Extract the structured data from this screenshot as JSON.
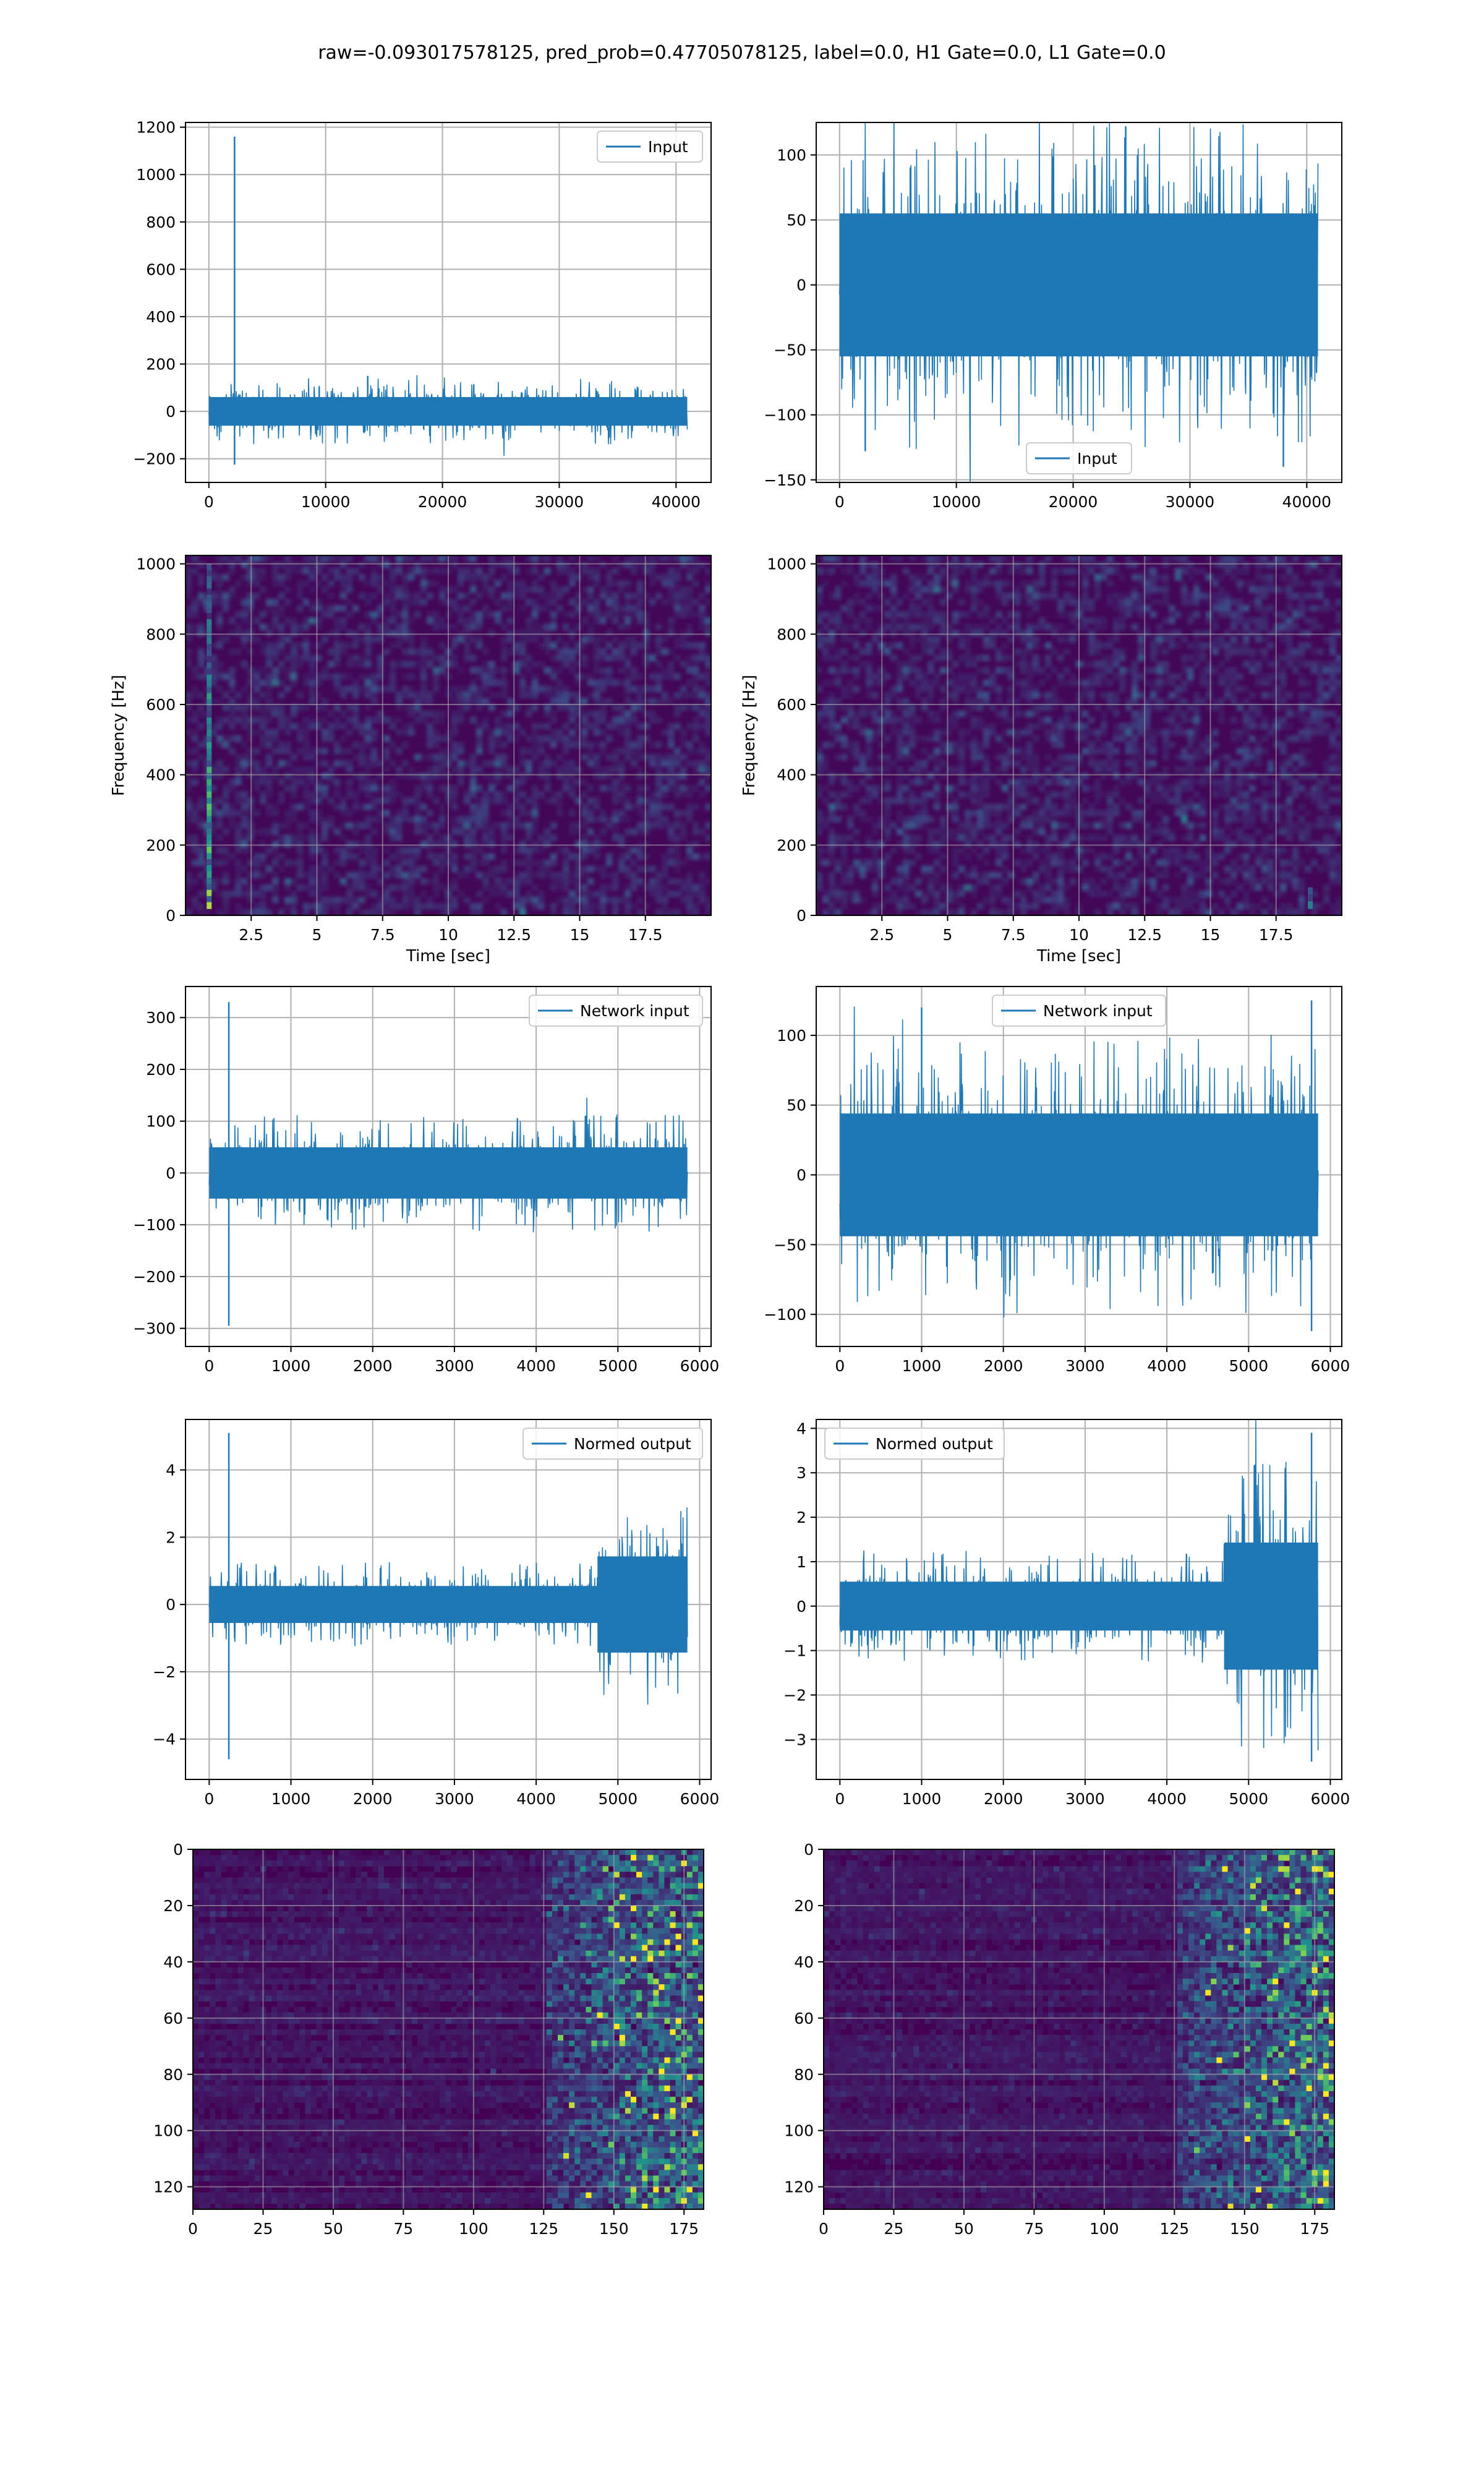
{
  "figure": {
    "suptitle": "raw=-0.093017578125, pred_prob=0.47705078125, label=0.0, H1 Gate=0.0, L1 Gate=0.0",
    "line_color": "#1f77b4"
  },
  "chart_data": [
    {
      "id": "input-h1",
      "type": "line",
      "title": "",
      "xlabel": "",
      "ylabel": "",
      "xlim": [
        -2000,
        43000
      ],
      "ylim": [
        -300,
        1220
      ],
      "xticks": [
        0,
        10000,
        20000,
        30000,
        40000
      ],
      "yticks": [
        -200,
        0,
        200,
        400,
        600,
        800,
        1000,
        1200
      ],
      "grid": true,
      "legend": {
        "placement": "top-right",
        "entries": [
          "Input"
        ]
      },
      "series": [
        {
          "name": "Input",
          "n_samples": 40960,
          "envelope": [
            -110,
            110
          ],
          "spikes": [
            [
              2200,
              1160
            ],
            [
              2200,
              -225
            ],
            [
              13600,
              150
            ]
          ]
        }
      ]
    },
    {
      "id": "input-l1",
      "type": "line",
      "title": "",
      "xlabel": "",
      "ylabel": "",
      "xlim": [
        -2000,
        43000
      ],
      "ylim": [
        -152,
        125
      ],
      "xticks": [
        0,
        10000,
        20000,
        30000,
        40000
      ],
      "yticks": [
        -150,
        -100,
        -50,
        0,
        50,
        100
      ],
      "grid": true,
      "legend": {
        "placement": "bottom-center",
        "entries": [
          "Input"
        ]
      },
      "series": [
        {
          "name": "Input",
          "n_samples": 40960,
          "envelope": [
            -100,
            100
          ],
          "spikes": [
            [
              24500,
              122
            ],
            [
              38000,
              -140
            ],
            [
              2200,
              -128
            ]
          ]
        }
      ]
    },
    {
      "id": "spectrogram-h1",
      "type": "heatmap",
      "title": "",
      "xlabel": "Time [sec]",
      "ylabel": "Frequency [Hz]",
      "xlim": [
        0,
        20
      ],
      "ylim": [
        0,
        1024
      ],
      "xticks": [
        2.5,
        5.0,
        7.5,
        10.0,
        12.5,
        15.0,
        17.5
      ],
      "yticks": [
        0,
        200,
        400,
        600,
        800,
        1000
      ],
      "grid": true,
      "hotspots": [
        {
          "t": 0.9,
          "f_range": [
            20,
            1000
          ],
          "intensity": 0.9
        }
      ]
    },
    {
      "id": "spectrogram-l1",
      "type": "heatmap",
      "title": "",
      "xlabel": "Time [sec]",
      "ylabel": "Frequency [Hz]",
      "xlim": [
        0,
        20
      ],
      "ylim": [
        0,
        1024
      ],
      "xticks": [
        2.5,
        5.0,
        7.5,
        10.0,
        12.5,
        15.0,
        17.5
      ],
      "yticks": [
        0,
        200,
        400,
        600,
        800,
        1000
      ],
      "grid": true,
      "hotspots": [
        {
          "t": 18.8,
          "f_range": [
            20,
            80
          ],
          "intensity": 0.8
        }
      ]
    },
    {
      "id": "network-input-h1",
      "type": "line",
      "title": "",
      "xlabel": "",
      "ylabel": "",
      "xlim": [
        -290,
        6140
      ],
      "ylim": [
        -335,
        360
      ],
      "xticks": [
        0,
        1000,
        2000,
        3000,
        4000,
        5000,
        6000
      ],
      "yticks": [
        -300,
        -200,
        -100,
        0,
        100,
        200,
        300
      ],
      "grid": true,
      "legend": {
        "placement": "top-right",
        "entries": [
          "Network input"
        ]
      },
      "series": [
        {
          "name": "Network input",
          "n_samples": 5850,
          "envelope": [
            -90,
            90
          ],
          "spikes": [
            [
              240,
              330
            ],
            [
              240,
              -295
            ]
          ]
        }
      ]
    },
    {
      "id": "network-input-l1",
      "type": "line",
      "title": "",
      "xlabel": "",
      "ylabel": "",
      "xlim": [
        -290,
        6140
      ],
      "ylim": [
        -123,
        135
      ],
      "xticks": [
        0,
        1000,
        2000,
        3000,
        4000,
        5000,
        6000
      ],
      "yticks": [
        -100,
        -50,
        0,
        50,
        100
      ],
      "grid": true,
      "legend": {
        "placement": "top-center",
        "entries": [
          "Network input"
        ]
      },
      "series": [
        {
          "name": "Network input",
          "n_samples": 5850,
          "envelope": [
            -80,
            80
          ],
          "spikes": [
            [
              1000,
              120
            ],
            [
              5770,
              125
            ],
            [
              5770,
              -112
            ]
          ]
        }
      ]
    },
    {
      "id": "normed-output-h1",
      "type": "line",
      "title": "",
      "xlabel": "",
      "ylabel": "",
      "xlim": [
        -290,
        6140
      ],
      "ylim": [
        -5.2,
        5.5
      ],
      "xticks": [
        0,
        1000,
        2000,
        3000,
        4000,
        5000,
        6000
      ],
      "yticks": [
        -4,
        -2,
        0,
        2,
        4
      ],
      "grid": true,
      "legend": {
        "placement": "top-right",
        "entries": [
          "Normed output"
        ]
      },
      "series": [
        {
          "name": "Normed output",
          "n_samples": 5850,
          "envelope": [
            -1.0,
            1.0
          ],
          "spikes": [
            [
              240,
              5.1
            ],
            [
              240,
              -4.6
            ]
          ],
          "burst_start": 4750,
          "burst_envelope": [
            -2.6,
            2.6
          ]
        }
      ]
    },
    {
      "id": "normed-output-l1",
      "type": "line",
      "title": "",
      "xlabel": "",
      "ylabel": "",
      "xlim": [
        -290,
        6140
      ],
      "ylim": [
        -3.9,
        4.2
      ],
      "xticks": [
        0,
        1000,
        2000,
        3000,
        4000,
        5000,
        6000
      ],
      "yticks": [
        -3,
        -2,
        -1,
        0,
        1,
        2,
        3,
        4
      ],
      "grid": true,
      "legend": {
        "placement": "top-left",
        "entries": [
          "Normed output"
        ]
      },
      "series": [
        {
          "name": "Normed output",
          "n_samples": 5850,
          "envelope": [
            -1.0,
            1.0
          ],
          "spikes": [
            [
              5770,
              3.9
            ],
            [
              5770,
              -3.5
            ]
          ],
          "burst_start": 4700,
          "burst_envelope": [
            -2.6,
            2.6
          ]
        }
      ]
    },
    {
      "id": "feature-map-h1",
      "type": "heatmap",
      "title": "",
      "xlabel": "",
      "ylabel": "",
      "xlim": [
        0,
        182
      ],
      "ylim": [
        128,
        0
      ],
      "xticks": [
        0,
        25,
        50,
        75,
        100,
        125,
        150,
        175
      ],
      "yticks": [
        0,
        20,
        40,
        60,
        80,
        100,
        120
      ],
      "grid": true,
      "bright_region_start_col": 125
    },
    {
      "id": "feature-map-l1",
      "type": "heatmap",
      "title": "",
      "xlabel": "",
      "ylabel": "",
      "xlim": [
        0,
        182
      ],
      "ylim": [
        128,
        0
      ],
      "xticks": [
        0,
        25,
        50,
        75,
        100,
        125,
        150,
        175
      ],
      "yticks": [
        0,
        20,
        40,
        60,
        80,
        100,
        120
      ],
      "grid": true,
      "bright_region_start_col": 125
    }
  ]
}
